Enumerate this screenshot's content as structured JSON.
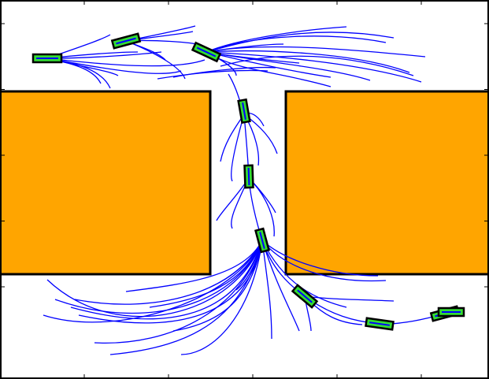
{
  "colors": {
    "background": "#ffffff",
    "frame": "#000000",
    "obstacle_fill": "#ffa500",
    "obstacle_stroke": "#000000",
    "trajectory": "#0000ff",
    "vehicle_fill": "#33dd33",
    "vehicle_outline": "#000000"
  },
  "axes": {
    "x_ticks": [
      1,
      2,
      3,
      4,
      5
    ],
    "y_ticks": [
      1,
      2,
      3,
      4,
      5
    ],
    "tick_labels_visible": false,
    "grid": false
  },
  "obstacles": [
    {
      "name": "left-obstacle"
    },
    {
      "name": "right-obstacle"
    }
  ],
  "vehicle_poses": [
    {
      "name": "pose-1-start"
    },
    {
      "name": "pose-2"
    },
    {
      "name": "pose-3"
    },
    {
      "name": "pose-4"
    },
    {
      "name": "pose-5"
    },
    {
      "name": "pose-6"
    },
    {
      "name": "pose-7"
    },
    {
      "name": "pose-8"
    },
    {
      "name": "pose-9-goal"
    }
  ],
  "trajectory_fans": [
    {
      "name": "fan-top-left"
    },
    {
      "name": "fan-top-right"
    },
    {
      "name": "fan-corridor"
    },
    {
      "name": "fan-bottom-left"
    },
    {
      "name": "fan-bottom-right"
    }
  ]
}
